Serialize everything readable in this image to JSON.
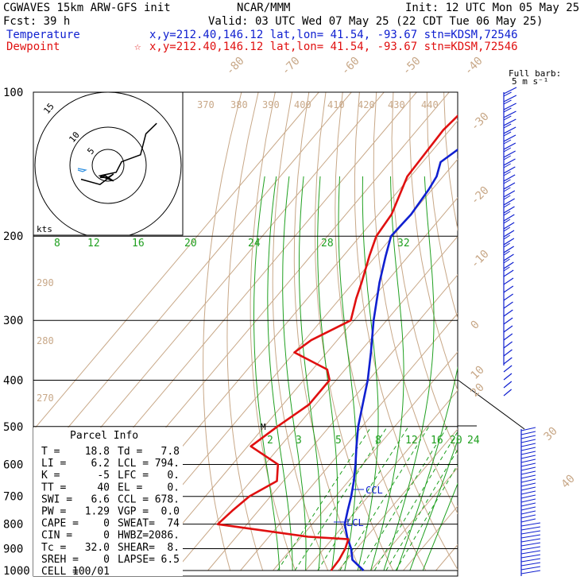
{
  "header": {
    "model": "CGWAVES 15km ARW-GFS init",
    "org": "NCAR/MMM",
    "init": "Init: 12 UTC Mon 05 May 25",
    "fcst": "Fcst:   39 h",
    "valid": "Valid: 03 UTC Wed 07 May 25 (22 CDT Tue 06 May 25)",
    "temp_label": "Temperature",
    "temp_loc": "x,y=212.40,146.12   lat,lon= 41.54, -93.67   stn=KDSM,72546",
    "dew_label": "Dewpoint",
    "dew_loc": "x,y=212.40,146.12   lat,lon= 41.54, -93.67   stn=KDSM,72546",
    "dew_marker": "☆"
  },
  "colors": {
    "temperature": "#1020d0",
    "dewpoint": "#e01010",
    "isotherm": "#c8a888",
    "mixing_ratio": "#20a020",
    "moist_adiabat": "#20a020",
    "wind": "#1020d0"
  },
  "chart_data": {
    "type": "line",
    "title": "",
    "xlabel": "",
    "ylabel": "",
    "pressure_levels": [
      "100",
      "200",
      "300",
      "400",
      "500",
      "600",
      "700",
      "800",
      "900",
      "1000"
    ],
    "temperature_labels": [
      "-80",
      "-70",
      "-60",
      "-50",
      "-40",
      "-30",
      "-20",
      "-10",
      "0",
      "10",
      "20",
      "30",
      "40"
    ],
    "dry_adiabat_labels": [
      "370",
      "380",
      "390",
      "400",
      "410",
      "420",
      "430",
      "440",
      "290",
      "280",
      "270"
    ],
    "mixing_ratio_labels_upper": [
      "8",
      "12",
      "16",
      "20",
      "24",
      "28",
      "32"
    ],
    "mixing_ratio_labels_lower": [
      "2",
      "3",
      "5",
      "8",
      "12",
      "16",
      "20",
      "24"
    ],
    "series": [
      {
        "name": "Temperature",
        "pressure": [
          1000,
          950,
          900,
          850,
          800,
          750,
          700,
          650,
          600,
          550,
          500,
          450,
          400,
          350,
          300,
          250,
          220,
          200,
          180,
          160,
          150,
          140,
          130,
          120,
          110,
          100
        ],
        "values": [
          17.8,
          11.6,
          8.3,
          4.0,
          0.0,
          -2.6,
          -5.2,
          -8.4,
          -12.2,
          -16.6,
          -21.2,
          -25.5,
          -30.3,
          -36.5,
          -44.0,
          -52.0,
          -57.0,
          -60.5,
          -60.0,
          -61.0,
          -62.0,
          -64.5,
          -62.0,
          -60.5,
          -58.5,
          -58.0
        ]
      },
      {
        "name": "Dewpoint",
        "pressure": [
          1000,
          950,
          900,
          860,
          850,
          800,
          750,
          700,
          650,
          600,
          550,
          500,
          450,
          400,
          380,
          350,
          330,
          300,
          270,
          250,
          220,
          200,
          180,
          150,
          120,
          100
        ],
        "values": [
          7.8,
          7.5,
          6.5,
          5.0,
          -8.0,
          -39.0,
          -38.0,
          -36.5,
          -32.0,
          -36.0,
          -49.0,
          -46.0,
          -42.0,
          -42.0,
          -45.5,
          -60.0,
          -58.0,
          -51.0,
          -55.0,
          -57.5,
          -62.0,
          -65.0,
          -66.0,
          -71.0,
          -72.0,
          -70.0
        ]
      }
    ],
    "annotations": [
      "M",
      "CCL",
      "LCL"
    ],
    "wind_barb_header": "Full barb:",
    "wind_barb_units": "5 m s⁻¹",
    "hodograph": {
      "units": "kts",
      "ring_labels": [
        "5",
        "10",
        "15"
      ],
      "u": [
        -10,
        -3,
        2,
        0,
        -3,
        -1,
        2,
        -3,
        3,
        5,
        12,
        14,
        18
      ],
      "v": [
        -8,
        -11,
        -5,
        -7,
        -7,
        -6,
        -9,
        -6,
        -4,
        2,
        6,
        18,
        24
      ]
    }
  },
  "parcel": {
    "title": "Parcel Info",
    "rows": [
      [
        "T  =",
        "18.8",
        "Td =",
        "7.8"
      ],
      [
        "LI =",
        "6.2",
        "LCL =",
        "794."
      ],
      [
        "K  =",
        "-5",
        "LFC =",
        "0."
      ],
      [
        "TT =",
        "40",
        "EL =",
        "0."
      ],
      [
        "SWI =",
        "6.6",
        "CCL =",
        "678."
      ],
      [
        "PW =",
        "1.29",
        "VGP =",
        "0.0"
      ],
      [
        "CAPE =",
        "0",
        "SWEAT=",
        "74"
      ],
      [
        "CIN =",
        "0",
        "HWBZ=",
        "2086."
      ],
      [
        "Tc =",
        "32.0",
        "SHEAR=",
        "8."
      ],
      [
        "SREH =",
        "0",
        "LAPSE=",
        "6.5"
      ],
      [
        "CELL =",
        "100/01",
        "",
        ""
      ]
    ]
  }
}
